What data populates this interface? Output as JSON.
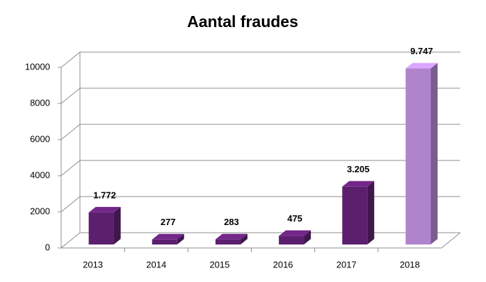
{
  "chart_data": {
    "type": "bar3d",
    "title": "Aantal fraudes",
    "categories": [
      "2013",
      "2014",
      "2015",
      "2016",
      "2017",
      "2018"
    ],
    "values": [
      1772,
      277,
      283,
      475,
      3205,
      9747
    ],
    "value_labels": [
      "1.772",
      "277",
      "283",
      "475",
      "3.205",
      "9.747"
    ],
    "colors": [
      "#5c1f6e",
      "#5c1f6e",
      "#5c1f6e",
      "#5c1f6e",
      "#5c1f6e",
      "#b084cc"
    ],
    "ylim": [
      0,
      10000
    ],
    "yticks": [
      0,
      2000,
      4000,
      6000,
      8000,
      10000
    ],
    "grid": true
  }
}
